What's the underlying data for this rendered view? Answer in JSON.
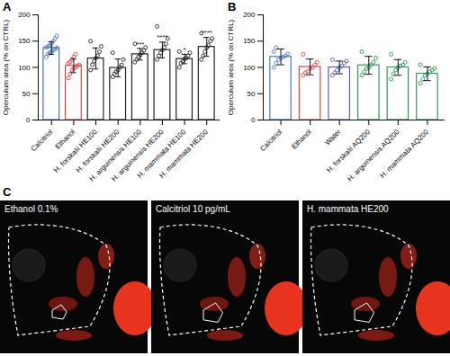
{
  "chart_data": [
    {
      "type": "bar",
      "panel": "A",
      "ylabel": "Operculum area (% on CTRL)",
      "categories": [
        "Calcitriol",
        "Ethanol",
        "H. forskalii HE100",
        "H. forskalii HE200",
        "H. arguinensis HE100",
        "H. arguinensis HE200",
        "H. mammata HE100",
        "H. mammata HE200"
      ],
      "values": [
        137,
        103,
        117,
        99,
        125,
        133,
        116,
        139
      ],
      "errors": [
        12,
        13,
        20,
        17,
        11,
        15,
        9,
        18
      ],
      "points": [
        [
          120,
          125,
          128,
          130,
          133,
          135,
          137,
          138,
          140,
          142,
          145,
          150,
          155,
          160
        ],
        [
          80,
          88,
          95,
          98,
          100,
          103,
          105,
          108,
          110,
          115,
          120,
          125
        ],
        [
          95,
          105,
          112,
          118,
          122,
          130,
          140,
          150
        ],
        [
          82,
          88,
          92,
          95,
          100,
          105,
          115,
          128
        ],
        [
          110,
          115,
          120,
          124,
          128,
          132,
          138,
          145
        ],
        [
          115,
          122,
          128,
          133,
          138,
          145,
          155,
          178
        ],
        [
          100,
          108,
          112,
          116,
          118,
          122,
          128,
          130
        ],
        [
          115,
          122,
          130,
          138,
          142,
          150,
          155,
          165
        ]
      ],
      "annotations": [
        null,
        null,
        null,
        null,
        "***",
        "****",
        "*",
        "****"
      ],
      "colors": [
        "#4a78c2",
        "#e0474c",
        "#222222",
        "#222222",
        "#222222",
        "#222222",
        "#222222",
        "#222222"
      ],
      "marker": "circle",
      "ylim": [
        0,
        200
      ],
      "yticks": [
        0,
        50,
        100,
        150,
        200
      ],
      "grid": false
    },
    {
      "type": "bar",
      "panel": "B",
      "ylabel": "Operculum area (% on CTRL)",
      "categories": [
        "Calcitriol",
        "Ethanol",
        "Water",
        "H. forskalii AQ200",
        "H. arguinensis AQ200",
        "H. mammata AQ200"
      ],
      "values": [
        120,
        101,
        100,
        104,
        100,
        88
      ],
      "errors": [
        15,
        15,
        12,
        17,
        15,
        13
      ],
      "points": [
        [
          100,
          108,
          115,
          118,
          120,
          122,
          126,
          130,
          138
        ],
        [
          85,
          90,
          92,
          98,
          100,
          105,
          110,
          125
        ],
        [
          85,
          90,
          95,
          100,
          103,
          108,
          112,
          115
        ],
        [
          85,
          92,
          98,
          100,
          105,
          110,
          118,
          130
        ],
        [
          78,
          88,
          95,
          100,
          103,
          105,
          110,
          125
        ],
        [
          70,
          78,
          85,
          88,
          92,
          95,
          98,
          105
        ]
      ],
      "annotations": [
        null,
        null,
        null,
        null,
        null,
        null
      ],
      "colors": [
        "#4a78c2",
        "#e0474c",
        "#5a5fa8",
        "#2e9a5a",
        "#2e9a5a",
        "#2e9a5a"
      ],
      "marker": "circle",
      "ylim": [
        0,
        200
      ],
      "yticks": [
        0,
        50,
        100,
        150,
        200
      ],
      "grid": false
    }
  ],
  "images": {
    "panel": "C",
    "labels": [
      "Ethanol 0.1%",
      "Calcitriol 10 pg/mL",
      "H. mammata HE200"
    ]
  }
}
